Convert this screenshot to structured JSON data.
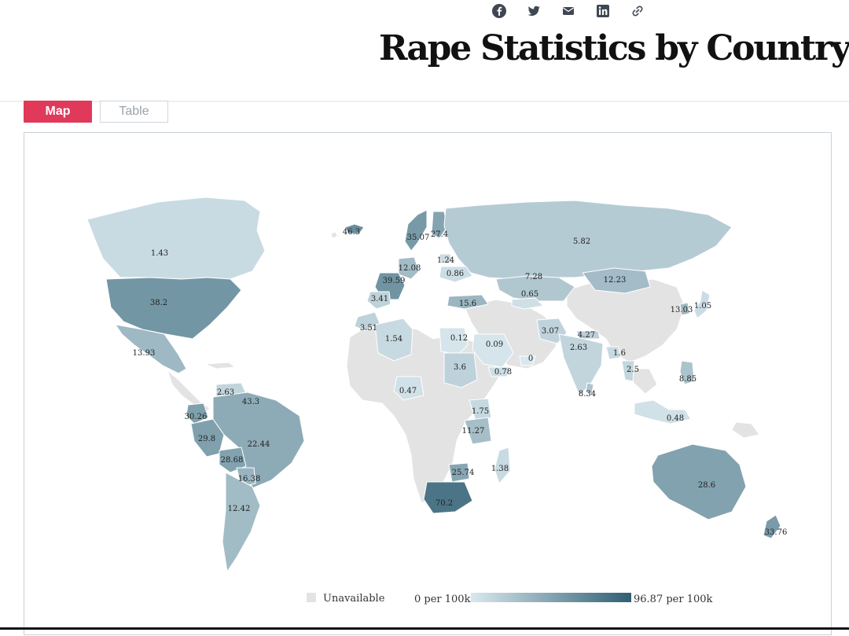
{
  "header": {
    "title": "Rape Statistics by Country",
    "share_icons": [
      "facebook-icon",
      "twitter-icon",
      "email-icon",
      "linkedin-icon",
      "link-icon"
    ]
  },
  "tabs": [
    {
      "label": "Map",
      "active": true
    },
    {
      "label": "Table",
      "active": false
    }
  ],
  "colors": {
    "accent": "#e0395a",
    "scale_low": "#d9e8ee",
    "scale_high": "#2f5f73",
    "unavailable": "#e3e3e3",
    "border": "#ffffff"
  },
  "map": {
    "metric": "per 100k",
    "scale": {
      "min": 0,
      "max": 96.87
    },
    "labels": [
      {
        "country": "Canada",
        "value": "1.43"
      },
      {
        "country": "United States",
        "value": "38.2"
      },
      {
        "country": "Mexico",
        "value": "13.93"
      },
      {
        "country": "Iceland",
        "value": "46.3"
      },
      {
        "country": "Norway",
        "value": "35.07"
      },
      {
        "country": "Finland",
        "value": "27.4"
      },
      {
        "country": "Russia",
        "value": "5.82"
      },
      {
        "country": "Lithuania",
        "value": "1.24"
      },
      {
        "country": "Germany",
        "value": "12.08"
      },
      {
        "country": "Ukraine",
        "value": "0.86"
      },
      {
        "country": "France",
        "value": "39.59"
      },
      {
        "country": "Kazakhstan",
        "value": "7.28"
      },
      {
        "country": "Mongolia",
        "value": "12.23"
      },
      {
        "country": "Spain",
        "value": "3.41"
      },
      {
        "country": "Turkey",
        "value": "15.6"
      },
      {
        "country": "Uzbekistan",
        "value": "0.65"
      },
      {
        "country": "South Korea",
        "value": "13.03"
      },
      {
        "country": "Japan",
        "value": "1.05"
      },
      {
        "country": "Morocco",
        "value": "3.51"
      },
      {
        "country": "Algeria",
        "value": "1.54"
      },
      {
        "country": "Egypt",
        "value": "0.12"
      },
      {
        "country": "Saudi Arabia",
        "value": "0.09"
      },
      {
        "country": "Pakistan",
        "value": "3.07"
      },
      {
        "country": "Nepal",
        "value": "4.27"
      },
      {
        "country": "India",
        "value": "2.63"
      },
      {
        "country": "Bangladesh",
        "value": "1.6"
      },
      {
        "country": "Oman",
        "value": "0"
      },
      {
        "country": "Yemen",
        "value": "0.78"
      },
      {
        "country": "Sudan",
        "value": "3.6"
      },
      {
        "country": "Thailand",
        "value": "2.5"
      },
      {
        "country": "Philippines",
        "value": "8.85"
      },
      {
        "country": "Sri Lanka",
        "value": "8.34"
      },
      {
        "country": "Nigeria",
        "value": "0.47"
      },
      {
        "country": "Venezuela",
        "value": "2.63"
      },
      {
        "country": "Suriname",
        "value": "43.3"
      },
      {
        "country": "Ecuador",
        "value": "30.26"
      },
      {
        "country": "Peru",
        "value": "29.8"
      },
      {
        "country": "Brazil",
        "value": "22.44"
      },
      {
        "country": "Bolivia",
        "value": "28.68"
      },
      {
        "country": "Paraguay",
        "value": "16.38"
      },
      {
        "country": "Argentina",
        "value": "12.42"
      },
      {
        "country": "Kenya",
        "value": "1.75"
      },
      {
        "country": "Tanzania",
        "value": "11.27"
      },
      {
        "country": "Zimbabwe",
        "value": "25.74"
      },
      {
        "country": "Madagascar",
        "value": "1.38"
      },
      {
        "country": "South Africa",
        "value": "70.2"
      },
      {
        "country": "Indonesia",
        "value": "0.48"
      },
      {
        "country": "Australia",
        "value": "28.6"
      },
      {
        "country": "New Zealand",
        "value": "33.76"
      }
    ]
  },
  "legend": {
    "unavailable": "Unavailable",
    "min_label": "0 per 100k",
    "max_label": "96.87 per 100k"
  }
}
